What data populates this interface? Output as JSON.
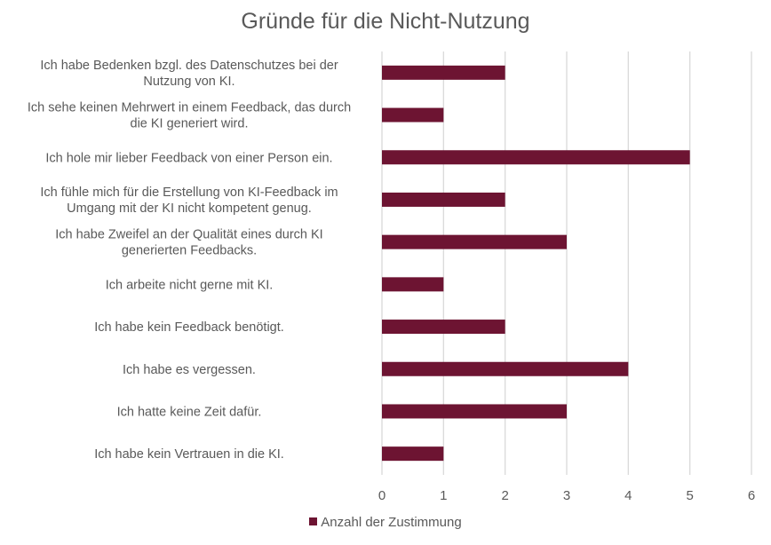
{
  "chart_data": {
    "type": "bar",
    "orientation": "horizontal",
    "title": "Gründe für die Nicht-Nutzung",
    "categories": [
      [
        "Ich habe Bedenken bzgl. des Datenschutzes bei der",
        "Nutzung von KI."
      ],
      [
        "Ich sehe keinen Mehrwert in einem Feedback, das durch",
        "die KI generiert wird."
      ],
      [
        "Ich hole mir lieber Feedback von einer Person ein."
      ],
      [
        "Ich fühle mich für die Erstellung von KI-Feedback im",
        "Umgang mit der KI nicht kompetent genug."
      ],
      [
        "Ich habe Zweifel an der Qualität eines durch KI",
        "generierten Feedbacks."
      ],
      [
        "Ich arbeite nicht gerne mit KI."
      ],
      [
        "Ich habe kein Feedback benötigt."
      ],
      [
        "Ich habe es vergessen."
      ],
      [
        "Ich hatte keine Zeit dafür."
      ],
      [
        "Ich habe kein Vertrauen in die KI."
      ]
    ],
    "series": [
      {
        "name": "Anzahl der Zustimmung",
        "values": [
          2,
          1,
          5,
          2,
          3,
          1,
          2,
          4,
          3,
          1
        ]
      }
    ],
    "xlim": [
      0,
      6
    ],
    "xticks": [
      "0",
      "1",
      "2",
      "3",
      "4",
      "5",
      "6"
    ],
    "grid": true,
    "legend_position": "bottom",
    "colors": {
      "bar": "#6d1432",
      "grid": "#d9d9d9",
      "text": "#595959"
    }
  }
}
